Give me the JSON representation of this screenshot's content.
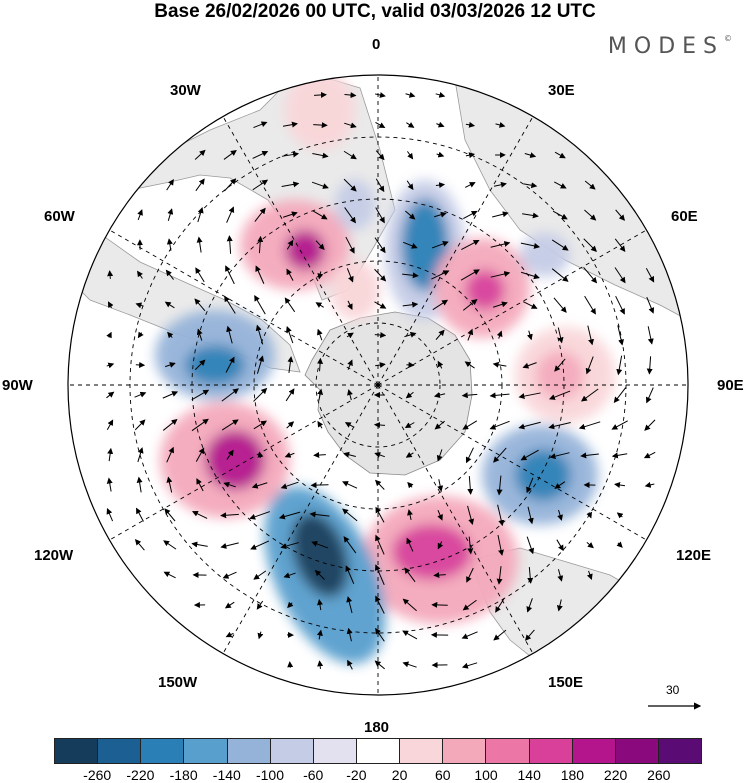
{
  "title": "Base 26/02/2026 00 UTC, valid 03/03/2026 12 UTC",
  "brand": "MODES",
  "brand_mark": "©",
  "longitude_labels": {
    "top": "0",
    "top_right": "30E",
    "upper_right": "60E",
    "right": "90E",
    "lower_right": "120E",
    "bottom_right": "150E",
    "bottom": "180",
    "bottom_left": "150W",
    "lower_left": "120W",
    "left": "90W",
    "upper_left": "60W",
    "top_left": "30W"
  },
  "reference_vector": {
    "label": "30",
    "magnitude": 30
  },
  "colorbar": {
    "ticks": [
      "-260",
      "-220",
      "-180",
      "-140",
      "-100",
      "-60",
      "-20",
      "20",
      "60",
      "100",
      "140",
      "180",
      "220",
      "260"
    ],
    "colors": [
      "#163c5c",
      "#1b5f93",
      "#2a7fb6",
      "#589fce",
      "#95b3d9",
      "#c5cce6",
      "#e3e1ef",
      "#ffffff",
      "#f9d6d9",
      "#f4a9bb",
      "#ec76a6",
      "#d8409a",
      "#b4158c",
      "#8a0a7e",
      "#5a0c74"
    ]
  },
  "anomalies": [
    {
      "sign": "negative",
      "value": -180,
      "region": "0°–30°E"
    },
    {
      "sign": "positive",
      "value": 160,
      "region": "30°–60°E"
    },
    {
      "sign": "positive",
      "value": 100,
      "region": "90°E"
    },
    {
      "sign": "negative",
      "value": -180,
      "region": "110°–120°E"
    },
    {
      "sign": "positive",
      "value": 200,
      "region": "150°E"
    },
    {
      "sign": "negative",
      "value": -260,
      "region": "150°W–180"
    },
    {
      "sign": "positive",
      "value": 220,
      "region": "110°–120°W"
    },
    {
      "sign": "negative",
      "value": -170,
      "region": "90°W"
    },
    {
      "sign": "positive",
      "value": 200,
      "region": "30°–60°W"
    }
  ]
}
